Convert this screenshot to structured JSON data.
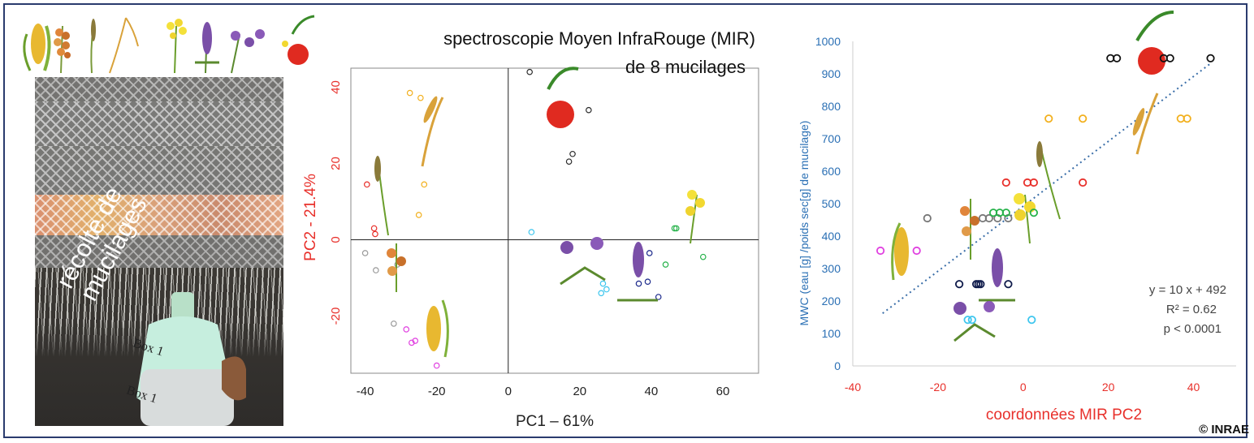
{
  "photo": {
    "caption": "récolte de\nmucilages",
    "label_a": "Box 1",
    "label_b": "Box 1"
  },
  "pca_title_line1": "spectroscopie Moyen InfraRouge (MIR)",
  "pca_title_line2": "de 8 mucilages",
  "copyright": "© INRAE",
  "regression": {
    "equation": "y = 10 x + 492",
    "r2": "R² = 0.62",
    "p": "p < 0.0001"
  },
  "colors": {
    "frame": "#2a3b6e",
    "red_axis": "#e8302b",
    "blue_axis": "#2a6fb4",
    "trend": "#3a6ea8"
  },
  "chart_data": [
    {
      "type": "scatter",
      "title": "spectroscopie Moyen InfraRouge (MIR) de 8 mucilages",
      "xlabel": "PC1 – 61%",
      "ylabel": "PC2 - 21.4%",
      "xlim": [
        -44,
        70
      ],
      "ylim": [
        -35,
        45
      ],
      "xticks": [
        -40,
        -20,
        0,
        20,
        40,
        60
      ],
      "yticks": [
        40,
        20,
        0,
        -20
      ],
      "xtick_labels": [
        "-40",
        "-20",
        "0",
        "20",
        "40",
        "60"
      ],
      "ytick_labels": [
        "40",
        "20",
        "0",
        "-20"
      ],
      "axis_lines_at_zero": true,
      "series": [
        {
          "color": "#f2b01e",
          "points": [
            [
              -27.5,
              38.5
            ],
            [
              -24.5,
              37.2
            ],
            [
              -23.5,
              14.5
            ],
            [
              -25,
              6.5
            ]
          ]
        },
        {
          "color": "#e8302b",
          "points": [
            [
              -39.5,
              14.5
            ],
            [
              -37.5,
              3
            ],
            [
              -37.2,
              1.5
            ]
          ]
        },
        {
          "color": "#2b2b2b",
          "points": [
            [
              6,
              44
            ],
            [
              22.5,
              34
            ],
            [
              18,
              22.5
            ],
            [
              17,
              20.5
            ]
          ]
        },
        {
          "color": "#9a9a9a",
          "points": [
            [
              -40,
              -3.5
            ],
            [
              -37,
              -8
            ],
            [
              -31,
              -6.5
            ],
            [
              -32,
              -22
            ]
          ]
        },
        {
          "color": "#e040e0",
          "points": [
            [
              -28.5,
              -23.5
            ],
            [
              -27,
              -27
            ],
            [
              -26,
              -26.5
            ],
            [
              -20,
              -33
            ]
          ]
        },
        {
          "color": "#3ec6ee",
          "points": [
            [
              6.5,
              2
            ],
            [
              26.5,
              -11.5
            ],
            [
              27.5,
              -13
            ],
            [
              26,
              -14
            ]
          ]
        },
        {
          "color": "#1c2a8c",
          "points": [
            [
              39.5,
              -3.5
            ],
            [
              39,
              -11
            ],
            [
              36.5,
              -11.5
            ],
            [
              42,
              -15
            ]
          ]
        },
        {
          "color": "#26b24a",
          "points": [
            [
              47,
              3
            ],
            [
              46.5,
              3
            ],
            [
              54.5,
              -4.5
            ],
            [
              44,
              -6.5
            ]
          ]
        }
      ]
    },
    {
      "type": "scatter",
      "xlabel": "coordonnées MIR PC2",
      "ylabel": "MWC (eau [g] /poids sec[g] de mucilage)",
      "xlim": [
        -40,
        50
      ],
      "ylim": [
        0,
        1000
      ],
      "xticks": [
        -40,
        -20,
        0,
        20,
        40
      ],
      "yticks": [
        0,
        100,
        200,
        300,
        400,
        500,
        600,
        700,
        800,
        900,
        1000
      ],
      "xtick_labels": [
        "-40",
        "-20",
        "0",
        "20",
        "40"
      ],
      "ytick_labels": [
        "0",
        "100",
        "200",
        "300",
        "400",
        "500",
        "600",
        "700",
        "800",
        "900",
        "1000"
      ],
      "trendline": {
        "slope": 10,
        "intercept": 492,
        "x_range": [
          -33,
          44
        ],
        "style": "dotted"
      },
      "series": [
        {
          "color": "#e040e0",
          "points": [
            [
              -33.5,
              355
            ],
            [
              -25,
              355
            ]
          ]
        },
        {
          "color": "#777777",
          "points": [
            [
              -22.5,
              455
            ],
            [
              -9.5,
              455
            ],
            [
              -8,
              455
            ],
            [
              -6,
              455
            ],
            [
              -3.5,
              455
            ]
          ]
        },
        {
          "color": "#0e1a4a",
          "points": [
            [
              -15,
              252
            ],
            [
              -11,
              252
            ],
            [
              -10.5,
              252
            ],
            [
              -10,
              252
            ],
            [
              -3.5,
              252
            ]
          ]
        },
        {
          "color": "#3ec6ee",
          "points": [
            [
              -13,
              142
            ],
            [
              -12,
              142
            ],
            [
              2,
              142
            ]
          ]
        },
        {
          "color": "#26b24a",
          "points": [
            [
              -7,
              472
            ],
            [
              -5.5,
              472
            ],
            [
              -4,
              472
            ],
            [
              2.5,
              472
            ]
          ]
        },
        {
          "color": "#e8302b",
          "points": [
            [
              -4,
              565
            ],
            [
              1,
              565
            ],
            [
              2.5,
              565
            ],
            [
              14,
              565
            ]
          ]
        },
        {
          "color": "#f2b01e",
          "points": [
            [
              6,
              762
            ],
            [
              14,
              762
            ],
            [
              37,
              762
            ],
            [
              38.5,
              762
            ]
          ]
        },
        {
          "color": "#111111",
          "points": [
            [
              20.5,
              948
            ],
            [
              22,
              948
            ],
            [
              33,
              948
            ],
            [
              34.5,
              948
            ],
            [
              44,
              948
            ]
          ]
        }
      ]
    }
  ]
}
